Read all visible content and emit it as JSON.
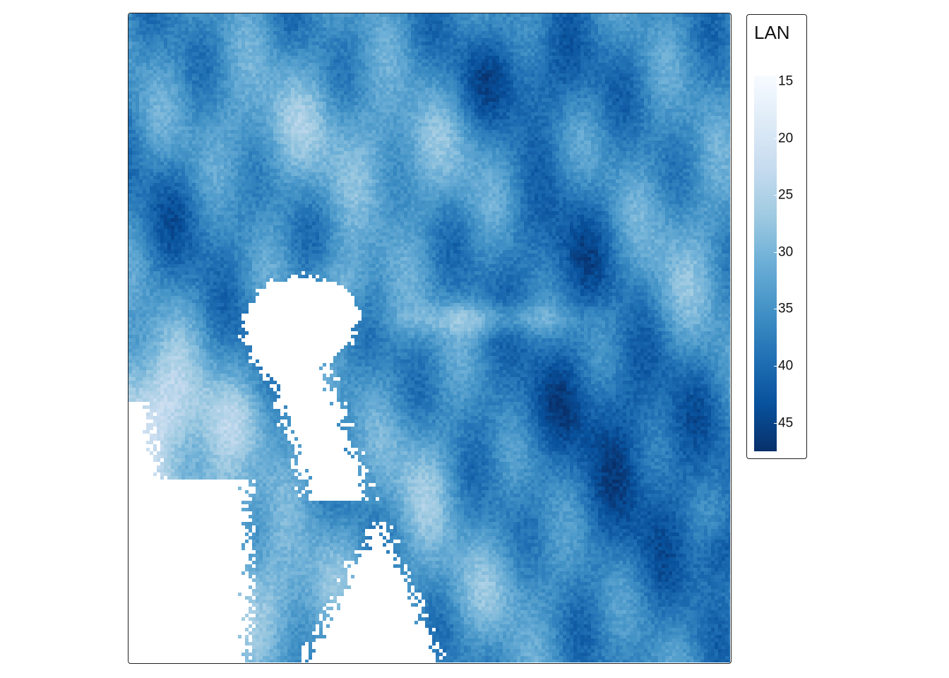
{
  "legend": {
    "title": "LAN",
    "ticks": [
      "15",
      "20",
      "25",
      "30",
      "35",
      "40",
      "45"
    ],
    "tick_values": [
      15,
      20,
      25,
      30,
      35,
      40,
      45
    ],
    "range": [
      14.5,
      47.5
    ],
    "palette": [
      "#f7fbff",
      "#deebf7",
      "#c6dbef",
      "#9ecae1",
      "#6baed6",
      "#4292c6",
      "#2171b5",
      "#08519c",
      "#08306b"
    ]
  },
  "map": {
    "type": "raster",
    "variable": "LAN",
    "missing_color": "#ffffff"
  }
}
